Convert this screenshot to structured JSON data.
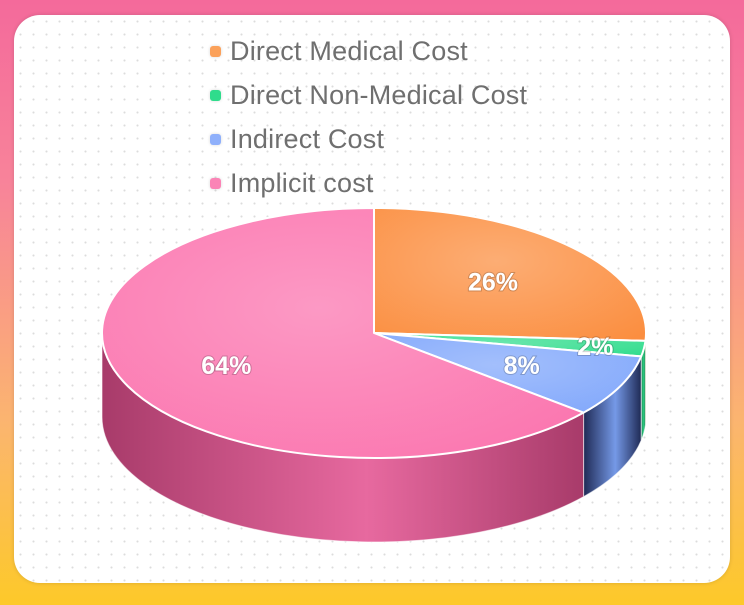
{
  "chart_data": {
    "type": "pie",
    "title": "",
    "legend_position": "top",
    "categories": [
      "Direct Medical Cost",
      "Direct Non-Medical Cost",
      "Indirect Cost",
      "Implicit cost"
    ],
    "values": [
      26,
      2,
      8,
      64
    ],
    "labels": [
      "26%",
      "2%",
      "8%",
      "64%"
    ],
    "colors": [
      "#fb8d3e",
      "#2fdc8c",
      "#7fa6fb",
      "#fb72ad"
    ],
    "side_colors": [
      "#b5571f",
      "#1c8a55",
      "#1f2a55",
      "#a83b6a"
    ]
  }
}
